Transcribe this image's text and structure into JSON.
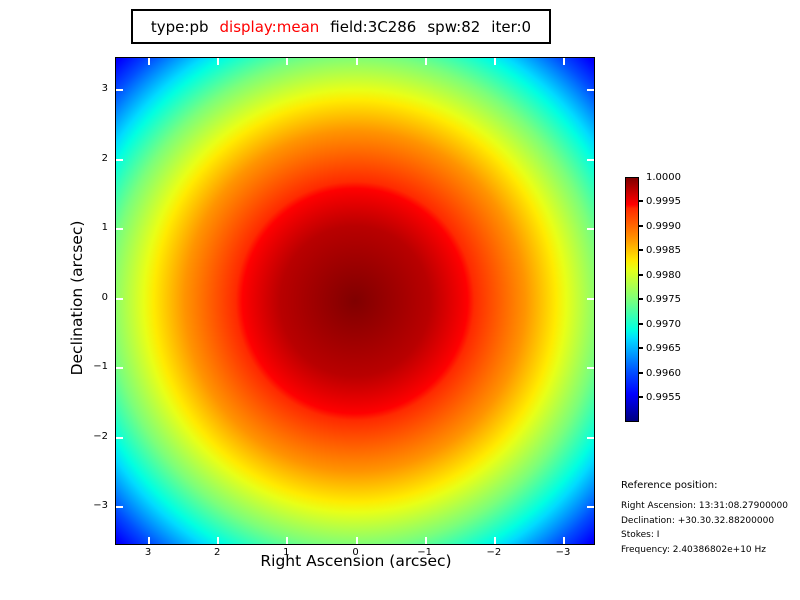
{
  "title": {
    "parts": [
      {
        "text": "type:pb",
        "color": "#000000"
      },
      {
        "text": "display:mean",
        "color": "#ff0000"
      },
      {
        "text": "field:3C286",
        "color": "#000000"
      },
      {
        "text": "spw:82",
        "color": "#000000"
      },
      {
        "text": "iter:0",
        "color": "#000000"
      }
    ]
  },
  "chart_data": {
    "type": "heatmap",
    "title": "type:pb display:mean field:3C286 spw:82 iter:0",
    "description": "Circularly symmetric primary-beam response, peak 1.0 at field center falling to ~0.9955 at image corners; jet colormap",
    "xlabel": "Right Ascension (arcsec)",
    "ylabel": "Declination (arcsec)",
    "x_axis": {
      "ticks": [
        "3",
        "2",
        "1",
        "0",
        "−1",
        "−2",
        "−3"
      ],
      "range": [
        3.47,
        -3.47
      ],
      "reversed": true
    },
    "y_axis": {
      "ticks": [
        "3",
        "2",
        "1",
        "0",
        "−1",
        "−2",
        "−3"
      ],
      "range": [
        -3.47,
        3.47
      ]
    },
    "colorbar": {
      "ticks": [
        "1.0000",
        "0.9995",
        "0.9990",
        "0.9985",
        "0.9980",
        "0.9975",
        "0.9970",
        "0.9965",
        "0.9960",
        "0.9955"
      ],
      "vmin": 0.995,
      "vmax": 1.0,
      "colormap": "jet"
    },
    "center_value": 1.0,
    "edge_value": 0.9975,
    "corner_value": 0.9955,
    "radial_profile": "value(r) ~ 1 - 2.09e-4*r^2 (r in arcsec), beam center at (0,0)"
  },
  "reference": {
    "heading": "Reference position:",
    "lines": [
      "Right Ascension: 13:31:08.27900000",
      "Declination: +30.30.32.88200000",
      "Stokes: I",
      "Frequency: 2.40386802e+10 Hz"
    ]
  },
  "colors": {
    "display_accent": "#ff0000",
    "colormap_center": "#800000",
    "colormap_corner": "#0000f0",
    "plot_tick": "#ffffff",
    "text": "#000000"
  }
}
